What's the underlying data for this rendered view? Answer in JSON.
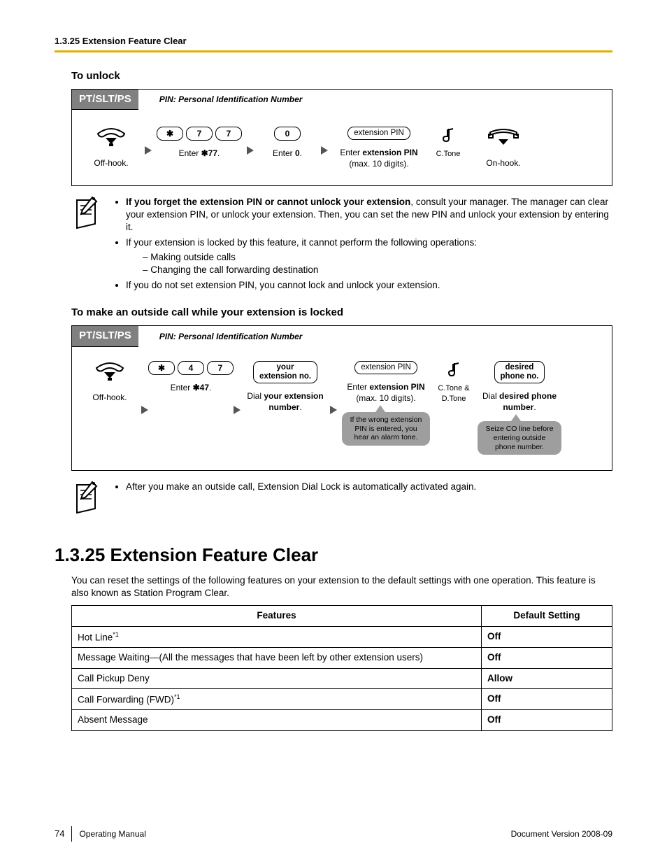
{
  "header": {
    "text": "1.3.25 Extension Feature Clear"
  },
  "unlock": {
    "title": "To unlock",
    "badge": "PT/SLT/PS",
    "pin_note": "PIN: Personal Identification Number",
    "steps": {
      "offhook": "Off-hook.",
      "enter77_pre": "Enter ",
      "enter77_seq": "✱77",
      "enter0_pre": "Enter ",
      "enter0_key": "0",
      "extpin_key": "extension PIN",
      "extpin_cap_pre": "Enter ",
      "extpin_cap_b": "extension PIN",
      "extpin_cap_suf": "(max. 10 digits).",
      "ctone": "C.Tone",
      "onhook": "On-hook."
    }
  },
  "notes1": {
    "b1_bold": "If you forget the extension PIN or cannot unlock your extension",
    "b1_rest": ", consult your manager. The manager can clear your extension PIN, or unlock your extension. Then, you can set the new PIN and unlock your extension by entering it.",
    "b2": "If your extension is locked by this feature, it cannot perform the following operations:",
    "b2a": "Making outside calls",
    "b2b": "Changing the call forwarding destination",
    "b3": "If you do not set extension PIN, you cannot lock and unlock your extension."
  },
  "outside": {
    "title": "To make an outside call while your extension is locked",
    "badge": "PT/SLT/PS",
    "pin_note": "PIN: Personal Identification Number",
    "steps": {
      "offhook": "Off-hook.",
      "enter47_pre": "Enter ",
      "enter47_seq": "✱47",
      "yourext_key_l1": "your",
      "yourext_key_l2": "extension no.",
      "yourext_cap_pre": "Dial ",
      "yourext_cap_b": "your extension number",
      "extpin_key": "extension PIN",
      "extpin_cap_pre": "Enter ",
      "extpin_cap_b": "extension PIN",
      "extpin_cap_suf": "(max. 10 digits).",
      "ctone": "C.Tone & D.Tone",
      "desired_key_l1": "desired",
      "desired_key_l2": "phone no.",
      "desired_cap_pre": "Dial ",
      "desired_cap_b": "desired phone number",
      "hint_pin": "If the wrong extension PIN is entered, you hear an alarm tone.",
      "hint_co": "Seize CO line before entering outside phone number."
    }
  },
  "notes2": {
    "b1": "After you make an outside call, Extension Dial Lock is automatically activated again."
  },
  "section": {
    "title": "1.3.25  Extension Feature Clear",
    "intro": "You can reset the settings of the following features on your extension to the default settings with one operation. This feature is also known as Station Program Clear."
  },
  "table": {
    "h1": "Features",
    "h2": "Default Setting",
    "rows": [
      {
        "f": "Hot Line",
        "sup": "*1",
        "d": "Off"
      },
      {
        "f": "Message Waiting—(All the messages that have been left by other extension users)",
        "sup": "",
        "d": "Off"
      },
      {
        "f": "Call Pickup Deny",
        "sup": "",
        "d": "Allow"
      },
      {
        "f": "Call Forwarding (FWD)",
        "sup": "*1",
        "d": "Off"
      },
      {
        "f": "Absent Message",
        "sup": "",
        "d": "Off"
      }
    ]
  },
  "footer": {
    "page": "74",
    "manual": "Operating Manual",
    "ver": "Document Version  2008-09"
  }
}
